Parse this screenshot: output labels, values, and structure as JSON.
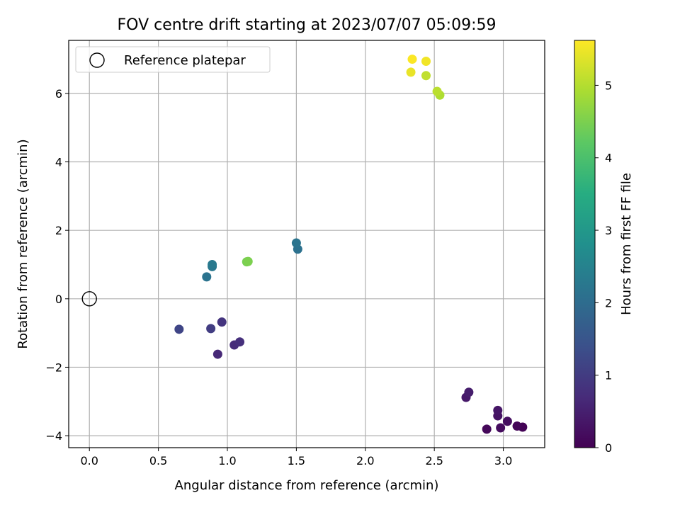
{
  "chart_data": {
    "type": "scatter",
    "title": "FOV centre drift starting at 2023/07/07 05:09:59",
    "xlabel": "Angular distance from reference (arcmin)",
    "ylabel": "Rotation from reference (arcmin)",
    "xlim": [
      -0.15,
      3.3
    ],
    "ylim": [
      -4.35,
      7.55
    ],
    "xticks": [
      0.0,
      0.5,
      1.0,
      1.5,
      2.0,
      2.5,
      3.0
    ],
    "xtick_labels": [
      "0.0",
      "0.5",
      "1.0",
      "1.5",
      "2.0",
      "2.5",
      "3.0"
    ],
    "yticks": [
      -4,
      -2,
      0,
      2,
      4,
      6
    ],
    "ytick_labels": [
      "−4",
      "−2",
      "0",
      "2",
      "4",
      "6"
    ],
    "grid": true,
    "legend": {
      "placement": "top-left",
      "entries": [
        "Reference platepar"
      ]
    },
    "reference_point": {
      "x": 0.0,
      "y": 0.0
    },
    "colorbar": {
      "label": "Hours from first FF file",
      "range": [
        0,
        5.62
      ],
      "ticks": [
        0,
        1,
        2,
        3,
        4,
        5
      ],
      "tick_labels": [
        "0",
        "1",
        "2",
        "3",
        "4",
        "5"
      ],
      "colormap": "viridis"
    },
    "points": [
      {
        "x": 3.14,
        "y": -3.75,
        "c": 0.03
      },
      {
        "x": 3.1,
        "y": -3.72,
        "c": 0.08
      },
      {
        "x": 2.88,
        "y": -3.81,
        "c": 0.12
      },
      {
        "x": 2.98,
        "y": -3.77,
        "c": 0.18
      },
      {
        "x": 3.03,
        "y": -3.58,
        "c": 0.22
      },
      {
        "x": 2.96,
        "y": -3.42,
        "c": 0.27
      },
      {
        "x": 2.96,
        "y": -3.26,
        "c": 0.33
      },
      {
        "x": 2.73,
        "y": -2.88,
        "c": 0.38
      },
      {
        "x": 2.75,
        "y": -2.73,
        "c": 0.45
      },
      {
        "x": 0.93,
        "y": -1.62,
        "c": 0.65
      },
      {
        "x": 1.05,
        "y": -1.35,
        "c": 0.72
      },
      {
        "x": 1.09,
        "y": -1.26,
        "c": 0.78
      },
      {
        "x": 0.96,
        "y": -0.68,
        "c": 0.85
      },
      {
        "x": 0.88,
        "y": -0.87,
        "c": 1.02
      },
      {
        "x": 0.65,
        "y": -0.89,
        "c": 1.18
      },
      {
        "x": 0.85,
        "y": 0.64,
        "c": 2.15
      },
      {
        "x": 0.89,
        "y": 0.94,
        "c": 2.25
      },
      {
        "x": 0.89,
        "y": 1.0,
        "c": 2.3
      },
      {
        "x": 1.51,
        "y": 1.45,
        "c": 2.1
      },
      {
        "x": 1.5,
        "y": 1.63,
        "c": 2.18
      },
      {
        "x": 1.14,
        "y": 1.08,
        "c": 4.45
      },
      {
        "x": 1.15,
        "y": 1.09,
        "c": 4.5
      },
      {
        "x": 2.54,
        "y": 5.95,
        "c": 4.95
      },
      {
        "x": 2.52,
        "y": 6.06,
        "c": 5.05
      },
      {
        "x": 2.44,
        "y": 6.52,
        "c": 5.1
      },
      {
        "x": 2.33,
        "y": 6.62,
        "c": 5.45
      },
      {
        "x": 2.44,
        "y": 6.94,
        "c": 5.52
      },
      {
        "x": 2.34,
        "y": 7.0,
        "c": 5.6
      }
    ]
  }
}
